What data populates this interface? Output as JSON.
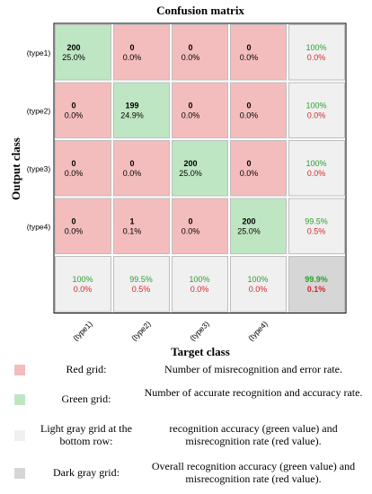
{
  "chart_data": {
    "type": "heatmap",
    "title": "Confusion matrix",
    "xlabel": "Target class",
    "ylabel": "Output class",
    "row_labels": [
      "(type1)",
      "(type2)",
      "(type3)",
      "(type4)"
    ],
    "col_labels": [
      "(type1)",
      "(type2)",
      "(type3)",
      "(type4)"
    ],
    "cells": [
      [
        {
          "count": "200",
          "pct": "25.0%"
        },
        {
          "count": "0",
          "pct": "0.0%"
        },
        {
          "count": "0",
          "pct": "0.0%"
        },
        {
          "count": "0",
          "pct": "0.0%"
        }
      ],
      [
        {
          "count": "0",
          "pct": "0.0%"
        },
        {
          "count": "199",
          "pct": "24.9%"
        },
        {
          "count": "0",
          "pct": "0.0%"
        },
        {
          "count": "0",
          "pct": "0.0%"
        }
      ],
      [
        {
          "count": "0",
          "pct": "0.0%"
        },
        {
          "count": "0",
          "pct": "0.0%"
        },
        {
          "count": "200",
          "pct": "25.0%"
        },
        {
          "count": "0",
          "pct": "0.0%"
        }
      ],
      [
        {
          "count": "0",
          "pct": "0.0%"
        },
        {
          "count": "1",
          "pct": "0.1%"
        },
        {
          "count": "0",
          "pct": "0.0%"
        },
        {
          "count": "200",
          "pct": "25.0%"
        }
      ]
    ],
    "row_summary": [
      {
        "correct": "100%",
        "error": "0.0%"
      },
      {
        "correct": "100%",
        "error": "0.0%"
      },
      {
        "correct": "100%",
        "error": "0.0%"
      },
      {
        "correct": "99.5%",
        "error": "0.5%"
      }
    ],
    "col_summary": [
      {
        "correct": "100%",
        "error": "0.0%"
      },
      {
        "correct": "99.5%",
        "error": "0.5%"
      },
      {
        "correct": "100%",
        "error": "0.0%"
      },
      {
        "correct": "100%",
        "error": "0.0%"
      }
    ],
    "overall": {
      "correct": "99.9%",
      "error": "0.1%"
    },
    "colors": {
      "red_cell": "#f4bdbd",
      "green_cell": "#bfe6c3",
      "light_gray": "#f0f0f0",
      "dark_gray": "#d6d6d6",
      "green_text": "#2ca02c",
      "red_text": "#d62728"
    }
  },
  "legend": [
    {
      "swatch": "#f4bdbd",
      "label": "Red grid:",
      "description": "Number of misrecognition and error rate."
    },
    {
      "swatch": "#bfe6c3",
      "label": "Green grid:",
      "description": "Number of accurate recognition and accuracy rate."
    },
    {
      "swatch": "#f0f0f0",
      "label": "Light gray grid at the bottom row:",
      "description": "recognition accuracy (green value) and misrecognition rate (red value)."
    },
    {
      "swatch": "#d6d6d6",
      "label": "Dark gray grid:",
      "description": "Overall recognition accuracy (green value) and misrecognition rate (red value)."
    }
  ]
}
